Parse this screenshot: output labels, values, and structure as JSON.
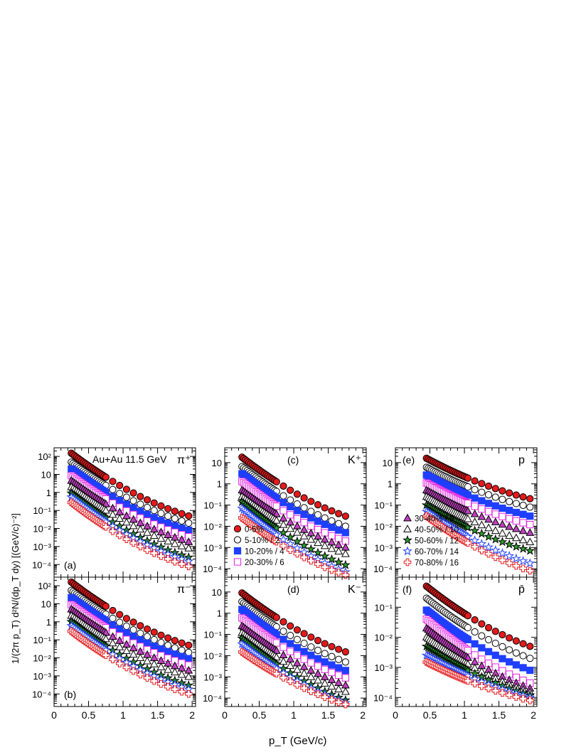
{
  "figure": {
    "title": "Au+Au 11.5 GeV",
    "xlabel": "p_T (GeV/c)",
    "ylabel": "1/(2π p_T) d²N/(dp_T dy) [(GeV/c)⁻²]"
  },
  "legend_left": [
    {
      "label": "0-5%",
      "marker": "circle",
      "fill": "#e41a1c",
      "stroke": "#000000"
    },
    {
      "label": "5-10% / 2",
      "marker": "circle",
      "fill": "#ffffff",
      "stroke": "#000000"
    },
    {
      "label": "10-20% / 4",
      "marker": "square",
      "fill": "#1f3fff",
      "stroke": "#1f3fff"
    },
    {
      "label": "20-30% / 6",
      "marker": "square",
      "fill": "#ffffff",
      "stroke": "#e020e0"
    }
  ],
  "legend_right": [
    {
      "label": "30-40% / 8",
      "marker": "triangle",
      "fill": "#c040c0",
      "stroke": "#000000"
    },
    {
      "label": "40-50% / 10",
      "marker": "triangle",
      "fill": "#ffffff",
      "stroke": "#000000"
    },
    {
      "label": "50-60% / 12",
      "marker": "star",
      "fill": "#2ca02c",
      "stroke": "#000000"
    },
    {
      "label": "60-70% / 14",
      "marker": "star",
      "fill": "#ffffff",
      "stroke": "#1f3fff"
    },
    {
      "label": "70-80% / 16",
      "marker": "cross",
      "fill": "#ffffff",
      "stroke": "#e41a1c"
    }
  ],
  "chart_data": [
    {
      "type": "scatter",
      "panel": "(a)",
      "particle": "π⁺",
      "x_range": [
        0.25,
        1.95
      ],
      "x_break": 0.75,
      "ylim": [
        2e-05,
        300
      ],
      "yscale": "log",
      "x_ticks": [
        "0",
        "0.5",
        "1",
        "1.5",
        "2"
      ],
      "y_ticks": [
        {
          "v": 0.0001,
          "l": "10⁻⁴"
        },
        {
          "v": 0.001,
          "l": "10⁻³"
        },
        {
          "v": 0.01,
          "l": "10⁻²"
        },
        {
          "v": 0.1,
          "l": "10⁻¹"
        },
        {
          "v": 1,
          "l": "1"
        },
        {
          "v": 10,
          "l": "10"
        },
        {
          "v": 100,
          "l": "10²"
        }
      ],
      "series_start": [
        150,
        48,
        20,
        8.5,
        4.5,
        2.0,
        0.9,
        0.55,
        0.28
      ],
      "series_end": [
        0.05,
        0.02,
        0.008,
        0.0035,
        0.0018,
        0.0008,
        0.00025,
        0.00015,
        8e-05
      ]
    },
    {
      "type": "scatter",
      "panel": "(b)",
      "particle": "π⁻",
      "x_range": [
        0.25,
        1.95
      ],
      "x_break": 0.75,
      "ylim": [
        2e-05,
        300
      ],
      "yscale": "log",
      "x_ticks": [
        "0",
        "0.5",
        "1",
        "1.5",
        "2"
      ],
      "y_ticks": [
        {
          "v": 0.0001,
          "l": "10⁻⁴"
        },
        {
          "v": 0.001,
          "l": "10⁻³"
        },
        {
          "v": 0.01,
          "l": "10⁻²"
        },
        {
          "v": 0.1,
          "l": "10⁻¹"
        },
        {
          "v": 1,
          "l": "1"
        },
        {
          "v": 10,
          "l": "10"
        },
        {
          "v": 100,
          "l": "10²"
        }
      ],
      "series_start": [
        160,
        55,
        22,
        9,
        5,
        2.2,
        1.0,
        0.6,
        0.3
      ],
      "series_end": [
        0.05,
        0.02,
        0.009,
        0.004,
        0.002,
        0.0009,
        0.0003,
        0.00018,
        0.0001
      ]
    },
    {
      "type": "scatter",
      "panel": "(c)",
      "particle": "K⁺",
      "x_range": [
        0.25,
        1.75
      ],
      "x_break": 0.75,
      "ylim": [
        4e-05,
        50
      ],
      "yscale": "log",
      "x_ticks": [
        "0",
        "0.5",
        "1",
        "1.5",
        "2"
      ],
      "y_ticks": [
        {
          "v": 0.0001,
          "l": "10⁻⁴"
        },
        {
          "v": 0.001,
          "l": "10⁻³"
        },
        {
          "v": 0.01,
          "l": "10⁻²"
        },
        {
          "v": 0.1,
          "l": "10⁻¹"
        },
        {
          "v": 1,
          "l": "1"
        },
        {
          "v": 10,
          "l": "10"
        }
      ],
      "series_start": [
        18,
        6.5,
        3,
        1.3,
        0.5,
        0.25,
        0.14,
        0.07,
        0.025
      ],
      "series_end": [
        0.03,
        0.01,
        0.005,
        0.002,
        0.001,
        0.0005,
        0.00015,
        7e-05,
        5e-05
      ]
    },
    {
      "type": "scatter",
      "panel": "(d)",
      "particle": "K⁻",
      "x_range": [
        0.25,
        1.75
      ],
      "x_break": 0.75,
      "ylim": [
        4e-05,
        50
      ],
      "yscale": "log",
      "x_ticks": [
        "0",
        "0.5",
        "1",
        "1.5",
        "2"
      ],
      "y_ticks": [
        {
          "v": 0.0001,
          "l": "10⁻⁴"
        },
        {
          "v": 0.001,
          "l": "10⁻³"
        },
        {
          "v": 0.01,
          "l": "10⁻²"
        },
        {
          "v": 0.1,
          "l": "10⁻¹"
        },
        {
          "v": 1,
          "l": "1"
        },
        {
          "v": 10,
          "l": "10"
        }
      ],
      "series_start": [
        9,
        3.5,
        1.5,
        0.6,
        0.25,
        0.12,
        0.065,
        0.035,
        0.015
      ],
      "series_end": [
        0.015,
        0.005,
        0.002,
        0.0009,
        0.0004,
        0.0002,
        8e-05,
        6e-05,
        5e-05
      ]
    },
    {
      "type": "scatter",
      "panel": "(e)",
      "particle": "p",
      "x_range": [
        0.45,
        1.95
      ],
      "x_break": 1.05,
      "ylim": [
        4e-05,
        50
      ],
      "yscale": "log",
      "x_ticks": [
        "0",
        "0.5",
        "1",
        "1.5",
        "2"
      ],
      "y_ticks": [
        {
          "v": 0.0001,
          "l": "10⁻⁴"
        },
        {
          "v": 0.001,
          "l": "10⁻³"
        },
        {
          "v": 0.01,
          "l": "10⁻²"
        },
        {
          "v": 0.1,
          "l": "10⁻¹"
        },
        {
          "v": 1,
          "l": "1"
        },
        {
          "v": 10,
          "l": "10"
        }
      ],
      "series_start": [
        16,
        6,
        2.6,
        1.1,
        0.5,
        0.25,
        0.1,
        0.05,
        0.03
      ],
      "series_end": [
        0.2,
        0.08,
        0.03,
        0.012,
        0.005,
        0.0018,
        0.0007,
        0.00018,
        8e-05
      ]
    },
    {
      "type": "scatter",
      "panel": "(f)",
      "particle": "p̄",
      "x_range": [
        0.45,
        1.95
      ],
      "x_break": 1.05,
      "ylim": [
        5e-05,
        1
      ],
      "yscale": "log",
      "x_ticks": [
        "0",
        "0.5",
        "1",
        "1.5",
        "2"
      ],
      "y_ticks": [
        {
          "v": 0.0001,
          "l": "10⁻⁴"
        },
        {
          "v": 0.001,
          "l": "10⁻³"
        },
        {
          "v": 0.01,
          "l": "10⁻²"
        },
        {
          "v": 0.1,
          "l": "10⁻¹"
        }
      ],
      "series_start": [
        0.5,
        0.2,
        0.08,
        0.04,
        0.02,
        0.01,
        0.005,
        0.0025,
        0.0015
      ],
      "series_end": [
        0.005,
        0.002,
        0.0008,
        0.0003,
        0.0002,
        0.00015,
        0.00012,
        0.0001,
        8e-05
      ]
    }
  ]
}
